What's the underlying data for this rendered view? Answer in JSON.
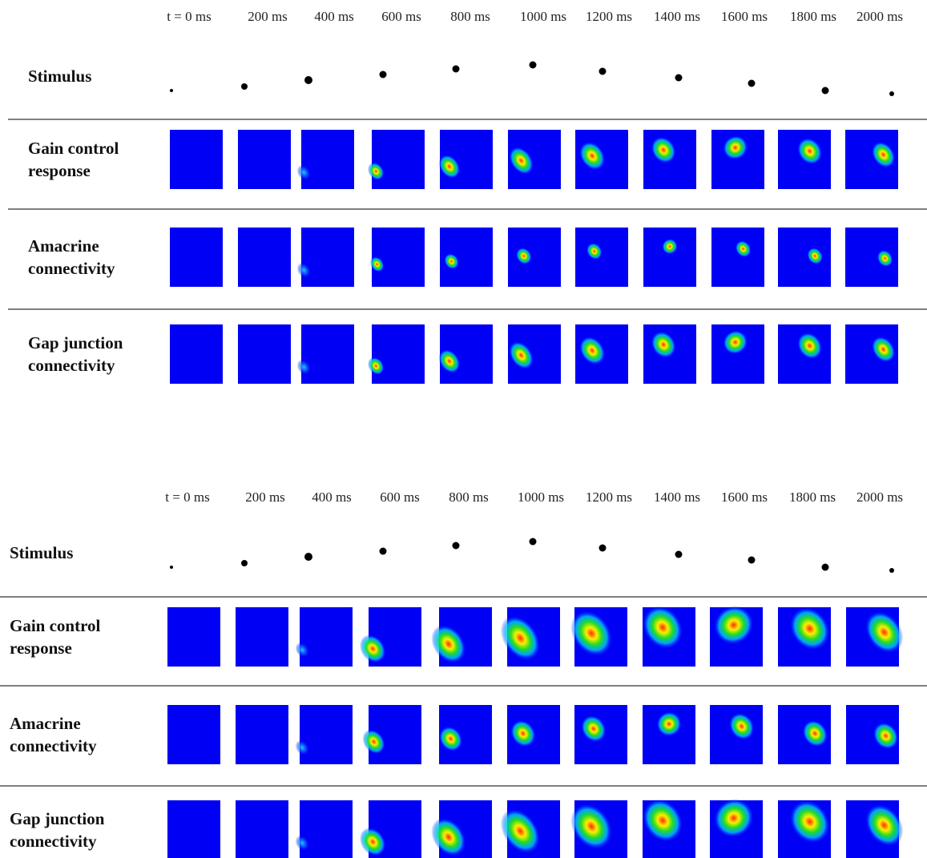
{
  "panels": [
    {
      "time_labels": [
        "t = 0 ms",
        "200 ms",
        "400 ms",
        "600 ms",
        "800 ms",
        "1000 ms",
        "1200 ms",
        "1400 ms",
        "1600 ms",
        "1800 ms",
        "2000 ms"
      ],
      "rows": [
        {
          "label": [
            "Stimulus"
          ]
        },
        {
          "label": [
            "Gain control",
            "response"
          ]
        },
        {
          "label": [
            "Amacrine",
            "connectivity"
          ]
        },
        {
          "label": [
            "Gap junction",
            "connectivity"
          ]
        }
      ]
    },
    {
      "time_labels": [
        "t = 0 ms",
        "200 ms",
        "400 ms",
        "600 ms",
        "800 ms",
        "1000 ms",
        "1200 ms",
        "1400 ms",
        "1600 ms",
        "1800 ms",
        "2000 ms"
      ],
      "rows": [
        {
          "label": [
            "Stimulus"
          ]
        },
        {
          "label": [
            "Gain control",
            "response"
          ]
        },
        {
          "label": [
            "Amacrine",
            "connectivity"
          ]
        },
        {
          "label": [
            "Gap junction",
            "connectivity"
          ]
        }
      ]
    }
  ]
}
